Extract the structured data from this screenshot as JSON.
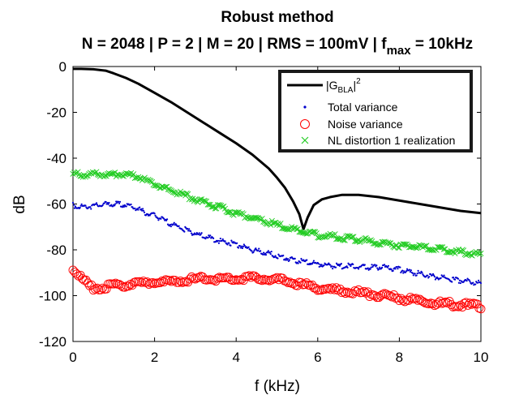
{
  "chart_data": {
    "type": "line",
    "title": "Robust method",
    "subtitle": {
      "prefix": "N = 2048 | P = 2 | M = 20 | RMS = 100mV | f",
      "sub": "max",
      "suffix": " = 10kHz"
    },
    "xlabel": "f (kHz)",
    "ylabel": "dB",
    "xlim": [
      0,
      10
    ],
    "ylim": [
      -120,
      0
    ],
    "xticks": [
      0,
      2,
      4,
      6,
      8,
      10
    ],
    "yticks": [
      0,
      -20,
      -40,
      -60,
      -80,
      -100,
      -120
    ],
    "grid": false,
    "legend_position": "top-right",
    "series": [
      {
        "name": "|G_BLA|^2",
        "legend": {
          "base": "|G",
          "sub": "BLA",
          "mid": "|",
          "sup": "2"
        },
        "style": "line",
        "color": "#000000",
        "x": [
          0,
          0.2,
          0.5,
          0.8,
          1.0,
          1.3,
          1.6,
          2.0,
          2.4,
          2.8,
          3.2,
          3.6,
          4.0,
          4.4,
          4.8,
          5.0,
          5.2,
          5.4,
          5.55,
          5.65,
          5.75,
          5.9,
          6.1,
          6.3,
          6.6,
          7.0,
          7.5,
          8.0,
          8.5,
          9.0,
          9.5,
          10.0
        ],
        "y": [
          -1,
          -1,
          -1.2,
          -1.8,
          -3,
          -5,
          -7.5,
          -11.5,
          -15.5,
          -20,
          -24.5,
          -29,
          -33.5,
          -38.5,
          -44.5,
          -48.5,
          -53,
          -59,
          -64.5,
          -71,
          -66,
          -60.5,
          -58,
          -57,
          -56,
          -56,
          -57,
          -58.5,
          -60,
          -61.5,
          -63,
          -64
        ]
      },
      {
        "name": "Total variance",
        "style": "dots",
        "color": "#0000cc",
        "x": [
          0,
          0.2,
          0.4,
          0.6,
          0.8,
          1.0,
          1.2,
          1.4,
          1.6,
          1.8,
          2.0,
          2.4,
          2.8,
          3.2,
          3.6,
          4.0,
          4.4,
          4.8,
          5.2,
          5.6,
          6.0,
          6.4,
          6.8,
          7.2,
          7.6,
          8.0,
          8.4,
          8.8,
          9.2,
          9.6,
          10.0
        ],
        "y": [
          -60,
          -60.5,
          -60.5,
          -60,
          -59.5,
          -59.5,
          -59.5,
          -60.5,
          -61.5,
          -63.5,
          -64.5,
          -68,
          -71,
          -73.5,
          -75.5,
          -77,
          -79.5,
          -81,
          -83,
          -84.5,
          -85.5,
          -86.5,
          -86.5,
          -87,
          -87,
          -88,
          -89.5,
          -91,
          -92,
          -93,
          -94
        ]
      },
      {
        "name": "Noise variance",
        "style": "circles",
        "color": "#ff0000",
        "x": [
          0,
          0.1,
          0.2,
          0.3,
          0.4,
          0.5,
          0.7,
          1.0,
          1.3,
          1.6,
          2.0,
          2.4,
          2.8,
          3.2,
          3.6,
          4.0,
          4.4,
          4.8,
          5.2,
          5.6,
          6.0,
          6.4,
          6.8,
          7.2,
          7.6,
          8.0,
          8.4,
          8.8,
          9.2,
          9.6,
          10.0
        ],
        "y": [
          -88,
          -90,
          -91.5,
          -93.5,
          -95,
          -96,
          -96,
          -95,
          -94.5,
          -94,
          -93.5,
          -93.5,
          -92.5,
          -92,
          -92,
          -92,
          -91.5,
          -92,
          -93,
          -94.5,
          -96,
          -97,
          -97.5,
          -98.5,
          -99.5,
          -100.5,
          -101.5,
          -102.5,
          -103,
          -103.5,
          -104
        ]
      },
      {
        "name": "NL distortion 1 realization",
        "style": "crosses",
        "color": "#22cc22",
        "x": [
          0,
          0.4,
          0.8,
          1.2,
          1.6,
          2.0,
          2.4,
          2.8,
          3.2,
          3.6,
          4.0,
          4.4,
          4.8,
          5.2,
          5.6,
          6.0,
          6.4,
          6.8,
          7.2,
          7.6,
          8.0,
          8.4,
          8.8,
          9.2,
          9.6,
          10.0
        ],
        "y": [
          -46.5,
          -46.5,
          -46.5,
          -46.5,
          -47.5,
          -51,
          -53.5,
          -56,
          -58.5,
          -61,
          -63.5,
          -65.5,
          -67.5,
          -69.5,
          -71.5,
          -73,
          -73.5,
          -74.5,
          -75.5,
          -76.5,
          -77.5,
          -78,
          -79,
          -79.5,
          -80.5,
          -81.5
        ]
      }
    ]
  }
}
